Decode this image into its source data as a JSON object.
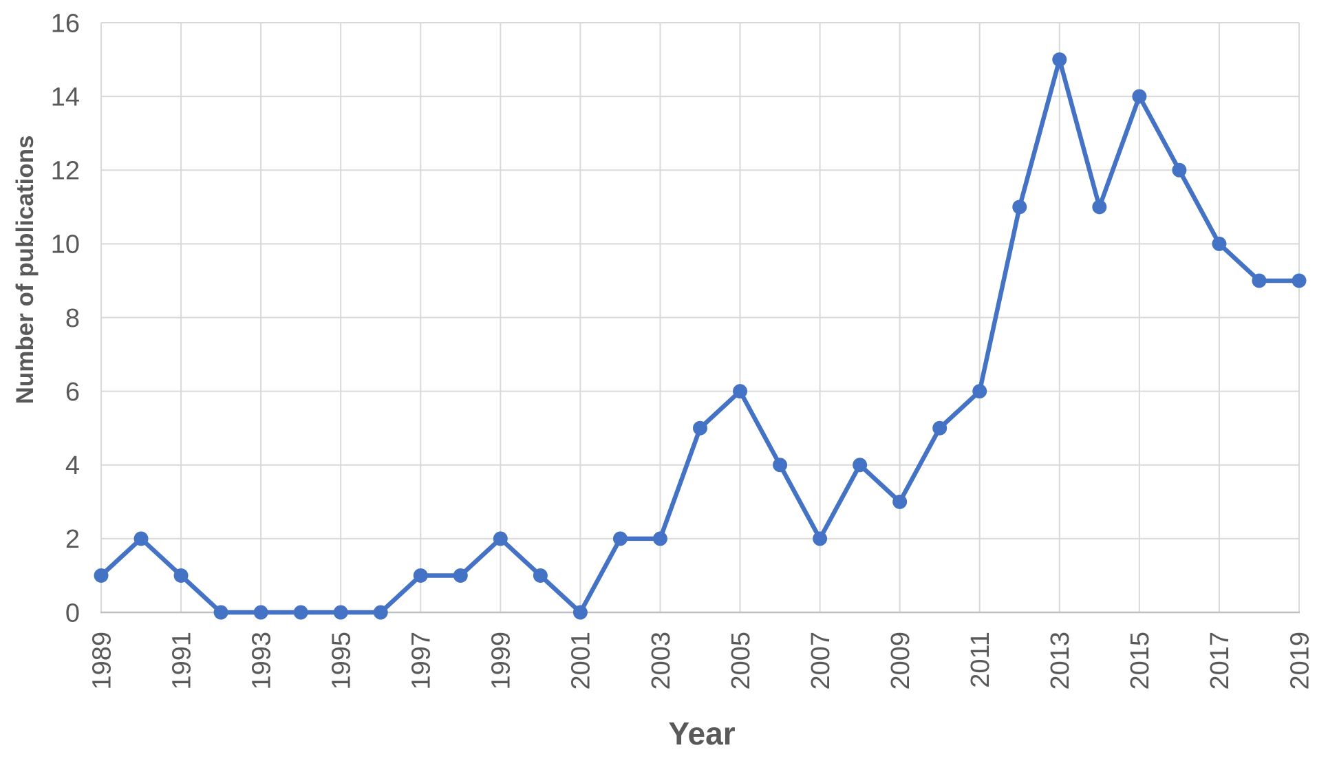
{
  "chart_data": {
    "type": "line",
    "title": "",
    "xlabel": "Year",
    "ylabel": "Number of publications",
    "x": [
      1989,
      1990,
      1991,
      1992,
      1993,
      1994,
      1995,
      1996,
      1997,
      1998,
      1999,
      2000,
      2001,
      2002,
      2003,
      2004,
      2005,
      2006,
      2007,
      2008,
      2009,
      2010,
      2011,
      2012,
      2013,
      2014,
      2015,
      2016,
      2017,
      2018,
      2019
    ],
    "values": [
      1,
      2,
      1,
      0,
      0,
      0,
      0,
      0,
      1,
      1,
      2,
      1,
      0,
      2,
      2,
      5,
      6,
      4,
      2,
      4,
      3,
      5,
      6,
      11,
      15,
      11,
      14,
      12,
      10,
      9,
      9
    ],
    "ylim": [
      0,
      16
    ],
    "yticks": [
      0,
      2,
      4,
      6,
      8,
      10,
      12,
      14,
      16
    ],
    "xtick_years": [
      1989,
      1991,
      1993,
      1995,
      1997,
      1999,
      2001,
      2003,
      2005,
      2007,
      2009,
      2011,
      2013,
      2015,
      2017,
      2019
    ],
    "grid": true,
    "legend": false,
    "marker": "circle",
    "line_color": "#4472C4",
    "marker_color": "#4472C4",
    "gridline_color": "#D9D9D9",
    "axis_line_color": "#BFBFBF",
    "tick_label_color": "#595959",
    "axis_title_color": "#595959",
    "background_color": "#FFFFFF"
  }
}
